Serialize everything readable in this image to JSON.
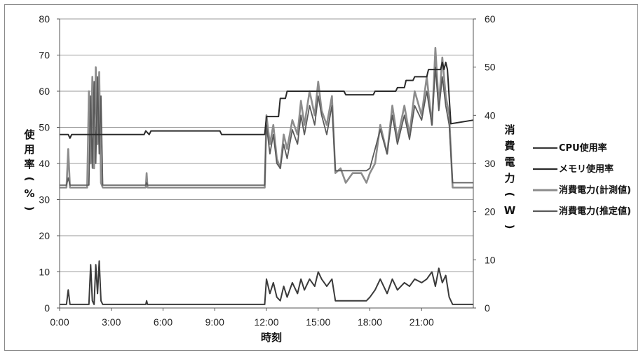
{
  "chart_data": {
    "type": "line",
    "xlabel": "時刻",
    "ylabel_left": "使用率(%)",
    "ylabel_right": "消費電力(W)",
    "xlim": [
      0,
      24
    ],
    "ylim_left": [
      0,
      80
    ],
    "ylim_right": [
      0,
      60
    ],
    "x_ticks": [
      "0:00",
      "3:00",
      "6:00",
      "9:00",
      "12:00",
      "15:00",
      "18:00",
      "21:00"
    ],
    "y_ticks_left": [
      "0",
      "10",
      "20",
      "30",
      "40",
      "50",
      "60",
      "70",
      "80"
    ],
    "y_ticks_right": [
      "0",
      "10",
      "20",
      "30",
      "40",
      "50",
      "60"
    ],
    "grid": true,
    "legend_position": "right",
    "colors": {
      "cpu": "#3a3a3a",
      "memory": "#2a2a2a",
      "measured": "#8c8c8c",
      "estimated": "#5a5a5a",
      "grid": "#9a9a9a"
    },
    "series": [
      {
        "name": "CPU使用率",
        "axis": "left",
        "x": [
          0,
          0.4,
          0.5,
          0.6,
          1.5,
          1.7,
          1.8,
          1.9,
          2.0,
          2.1,
          2.2,
          2.3,
          2.4,
          2.5,
          2.6,
          2.7,
          5.0,
          5.05,
          5.1,
          11.8,
          11.9,
          12.0,
          12.2,
          12.4,
          12.6,
          12.8,
          13.0,
          13.2,
          13.5,
          13.8,
          14.0,
          14.2,
          14.5,
          14.8,
          15.0,
          15.2,
          15.5,
          15.8,
          16.0,
          16.5,
          17.0,
          17.5,
          17.8,
          18.0,
          18.3,
          18.6,
          19.0,
          19.3,
          19.6,
          20.0,
          20.3,
          20.6,
          21.0,
          21.3,
          21.6,
          21.8,
          22.0,
          22.2,
          22.4,
          22.6,
          22.8,
          23.0,
          23.5,
          24.0
        ],
        "y": [
          1,
          1,
          5,
          1,
          1,
          1,
          12,
          2,
          1,
          12,
          4,
          13,
          2,
          1,
          1,
          1,
          1,
          2,
          1,
          1,
          1,
          8,
          4,
          7,
          3,
          2,
          6,
          3,
          7,
          4,
          8,
          5,
          8,
          6,
          10,
          8,
          6,
          8,
          2,
          2,
          2,
          2,
          2,
          3,
          5,
          8,
          4,
          8,
          5,
          7,
          6,
          8,
          7,
          8,
          10,
          6,
          11,
          7,
          9,
          3,
          1,
          1,
          1,
          1
        ]
      },
      {
        "name": "メモリ使用率",
        "axis": "left",
        "x": [
          0,
          0.5,
          0.6,
          0.7,
          4.9,
          5.0,
          5.2,
          5.3,
          9.3,
          9.4,
          11.9,
          12.0,
          12.7,
          12.8,
          13.1,
          13.2,
          16.5,
          16.6,
          18.2,
          18.3,
          19.5,
          19.6,
          20.0,
          20.1,
          20.5,
          20.6,
          21.3,
          21.4,
          22.1,
          22.2,
          22.3,
          22.4,
          22.5,
          22.7,
          24.0
        ],
        "y": [
          48,
          48,
          47,
          48,
          48,
          49,
          48,
          49,
          49,
          48,
          48,
          53,
          53,
          58,
          58,
          60,
          60,
          59,
          59,
          60,
          60,
          61,
          61,
          63,
          63,
          64,
          64,
          66,
          66,
          68,
          66,
          68,
          66,
          51,
          52
        ]
      },
      {
        "name": "消費電力(計測値)",
        "axis": "right",
        "x": [
          0,
          0.3,
          0.4,
          0.5,
          0.6,
          1.5,
          1.6,
          1.7,
          1.8,
          1.9,
          2.0,
          2.1,
          2.2,
          2.3,
          2.4,
          2.5,
          2.6,
          2.7,
          5.0,
          5.05,
          5.1,
          11.8,
          11.9,
          12.0,
          12.2,
          12.4,
          12.6,
          12.8,
          13.0,
          13.2,
          13.5,
          13.8,
          14.0,
          14.2,
          14.5,
          14.8,
          15.0,
          15.2,
          15.5,
          15.8,
          16.0,
          16.3,
          16.6,
          17.0,
          17.5,
          17.8,
          18.0,
          18.3,
          18.6,
          19.0,
          19.3,
          19.6,
          20.0,
          20.3,
          20.6,
          21.0,
          21.3,
          21.6,
          21.8,
          22.0,
          22.2,
          22.4,
          22.6,
          22.8,
          23.0,
          23.5,
          24.0
        ],
        "y": [
          25,
          25,
          25,
          33,
          25,
          25,
          25,
          45,
          30,
          48,
          29,
          50,
          34,
          49,
          26,
          25,
          25,
          25,
          25,
          28,
          25,
          25,
          25,
          40,
          34,
          38,
          31,
          29,
          36,
          33,
          39,
          36,
          43,
          38,
          45,
          40,
          47,
          41,
          38,
          44,
          28,
          29,
          26,
          28,
          28,
          26,
          28,
          30,
          38,
          32,
          42,
          35,
          42,
          36,
          45,
          40,
          48,
          38,
          54,
          42,
          52,
          44,
          40,
          25,
          25,
          25,
          25
        ]
      },
      {
        "name": "消費電力(推定値)",
        "axis": "right",
        "x": [
          0,
          0.4,
          0.5,
          0.6,
          1.5,
          1.7,
          1.8,
          1.9,
          2.0,
          2.1,
          2.2,
          2.3,
          2.4,
          2.5,
          2.7,
          5.0,
          5.05,
          5.1,
          11.8,
          11.9,
          12.0,
          12.2,
          12.4,
          12.6,
          12.8,
          13.0,
          13.2,
          13.5,
          13.8,
          14.0,
          14.2,
          14.5,
          14.8,
          15.0,
          15.2,
          15.5,
          15.8,
          16.0,
          16.5,
          17.0,
          17.5,
          17.8,
          18.0,
          18.3,
          18.6,
          19.0,
          19.3,
          19.6,
          20.0,
          20.3,
          20.6,
          21.0,
          21.3,
          21.6,
          21.8,
          22.0,
          22.2,
          22.4,
          22.6,
          22.8,
          23.0,
          23.5,
          24.0
        ],
        "y": [
          25.5,
          25.5,
          27,
          25.5,
          25.5,
          25.5,
          44,
          29,
          47,
          30,
          48,
          32,
          44,
          25.5,
          25.5,
          25.5,
          26,
          25.5,
          25.5,
          25.5,
          38,
          32,
          36,
          30,
          29,
          34,
          31,
          37,
          34,
          40,
          36,
          42,
          38,
          44,
          40,
          36,
          42,
          28.5,
          28.5,
          28.5,
          28.5,
          28.5,
          29,
          33,
          37,
          32,
          40,
          34,
          40,
          35,
          42,
          39,
          45,
          38,
          50,
          41,
          48,
          42,
          38,
          26,
          26,
          26,
          26
        ]
      }
    ]
  }
}
